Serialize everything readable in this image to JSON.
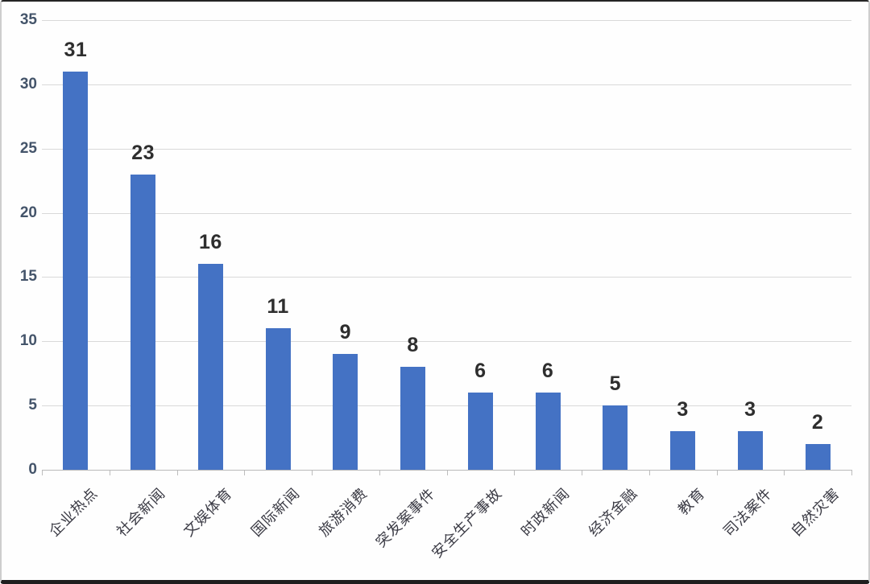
{
  "chart_data": {
    "type": "bar",
    "title": "",
    "xlabel": "",
    "ylabel": "",
    "categories": [
      "企业热点",
      "社会新闻",
      "文娱体育",
      "国际新闻",
      "旅游消费",
      "突发案事件",
      "安全生产事故",
      "时政新闻",
      "经济金融",
      "教育",
      "司法案件",
      "自然灾害"
    ],
    "values": [
      31,
      23,
      16,
      11,
      9,
      8,
      6,
      6,
      5,
      3,
      3,
      2
    ],
    "yticks": [
      0,
      5,
      10,
      15,
      20,
      25,
      30,
      35
    ],
    "ylim": [
      0,
      35
    ],
    "grid": true,
    "legend": false,
    "show_value_labels": true,
    "bar_color": "#4472c4",
    "gridline_color": "#d9d9d9",
    "axis_color": "#b9b9b9",
    "ytick_label_color": "#44546a",
    "value_label_color": "#2e2e2e",
    "xtick_label_color": "#3a3a44"
  }
}
